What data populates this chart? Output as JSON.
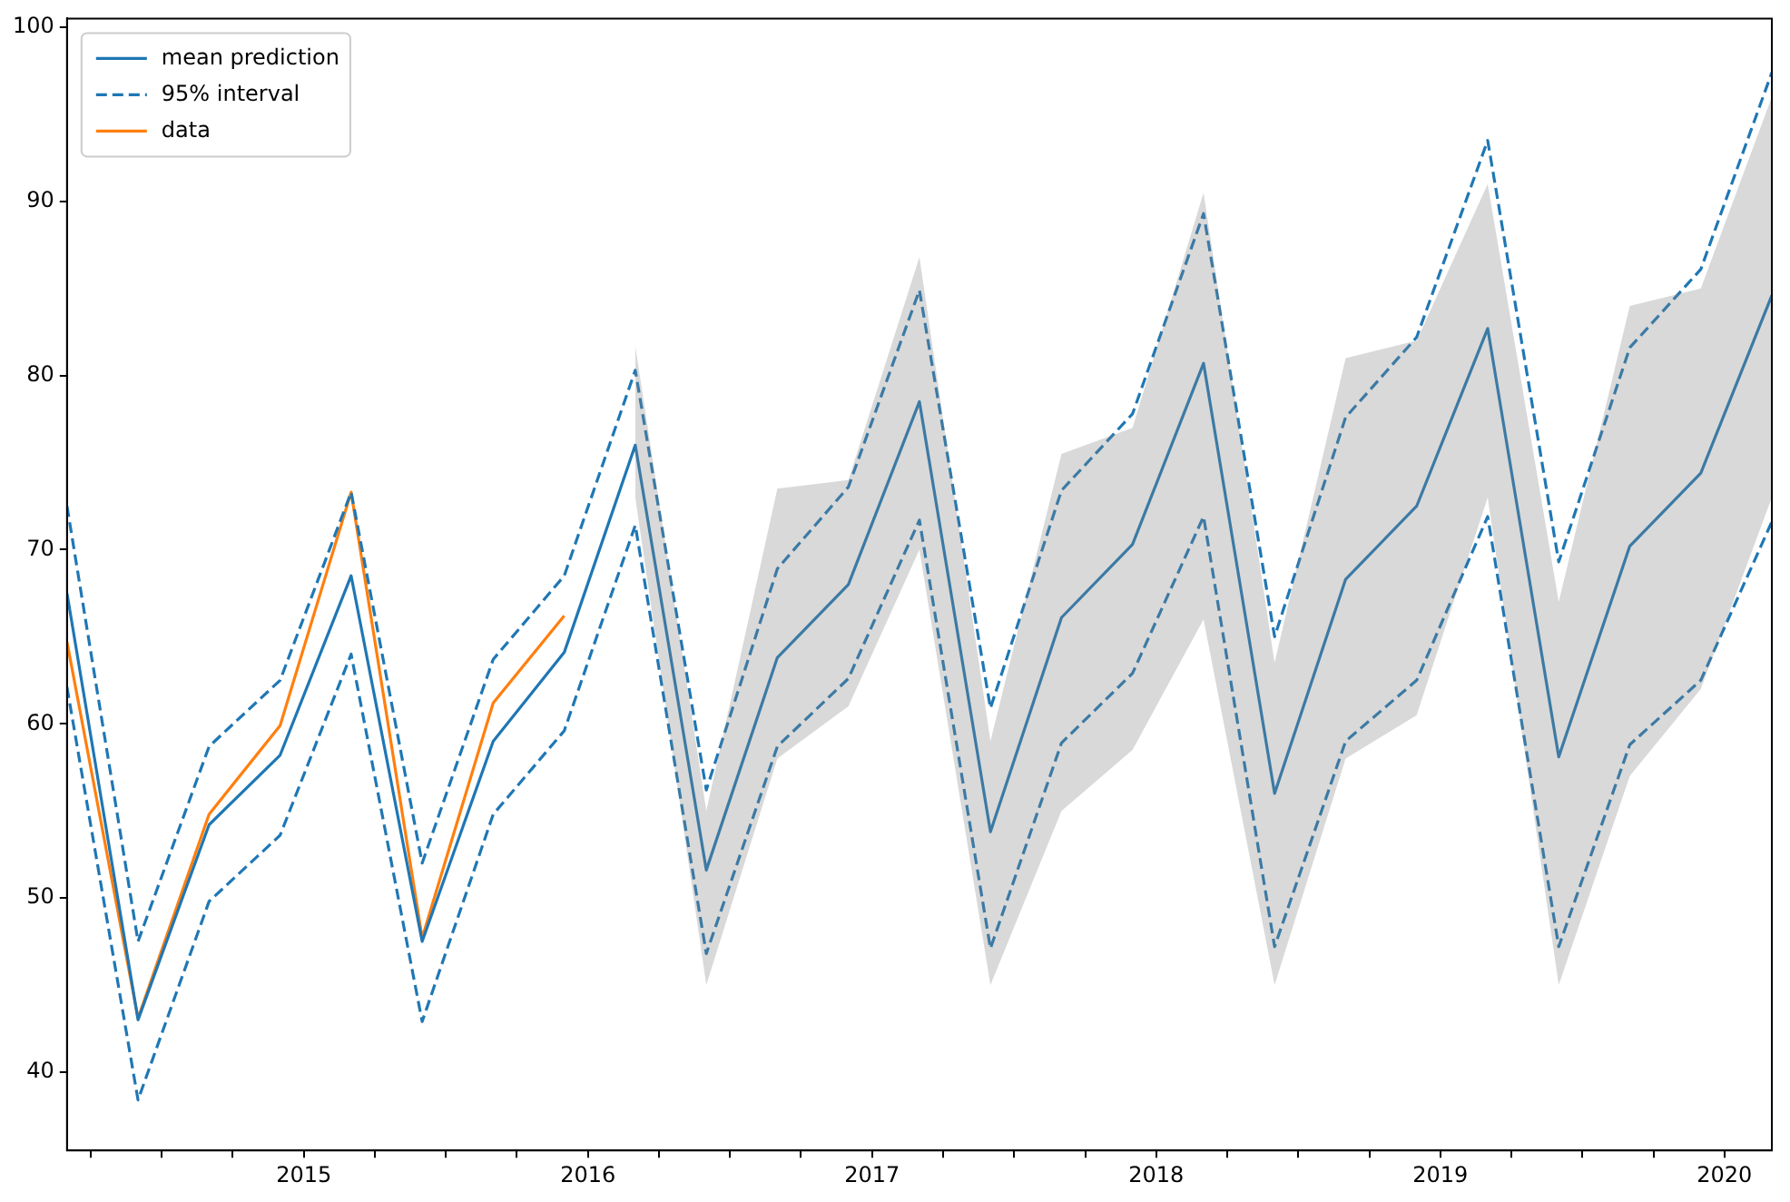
{
  "chart_data": {
    "type": "line",
    "x": [
      "2014-03",
      "2014-06",
      "2014-09",
      "2014-12",
      "2015-03",
      "2015-06",
      "2015-09",
      "2015-12",
      "2016-03",
      "2016-06",
      "2016-09",
      "2016-12",
      "2017-03",
      "2017-06",
      "2017-09",
      "2017-12",
      "2018-03",
      "2018-06",
      "2018-09",
      "2018-12",
      "2019-03",
      "2019-06",
      "2019-09",
      "2019-12",
      "2020-03"
    ],
    "series": [
      {
        "color": "#808080",
        "values": [
          null,
          null,
          null,
          null,
          null,
          null,
          null,
          null,
          null,
          null,
          null,
          null,
          null,
          null,
          null,
          null,
          null,
          null,
          null,
          null,
          null,
          null,
          null,
          null,
          null
        ],
        "lower": [
          null,
          null,
          null,
          null,
          null,
          null,
          null,
          null,
          73,
          45,
          58,
          61,
          70,
          45,
          55,
          58.5,
          66,
          45,
          58,
          60.5,
          73,
          45,
          57,
          62,
          73
        ],
        "upper": [
          null,
          null,
          null,
          null,
          null,
          null,
          null,
          null,
          81.7,
          55,
          73.5,
          74,
          86.8,
          59,
          75.5,
          77,
          90.5,
          63.5,
          81,
          82,
          91,
          67,
          84,
          85,
          96
        ]
      },
      {
        "name": "mean prediction",
        "color": "#1f77b4",
        "line_style": "solid",
        "values": [
          67.5,
          43.0,
          54.2,
          58.2,
          68.5,
          47.5,
          59.0,
          64.1,
          76.0,
          51.6,
          63.8,
          68.0,
          78.5,
          53.8,
          66.1,
          70.3,
          80.7,
          56.0,
          68.3,
          72.5,
          82.7,
          58.1,
          70.2,
          74.4,
          84.6
        ]
      },
      {
        "name": "95% interval",
        "color": "#1f77b4",
        "line_style": "dashed",
        "values": [
          72.5,
          47.5,
          58.7,
          62.5,
          73.3,
          52.0,
          63.7,
          68.5,
          80.3,
          56.2,
          68.9,
          73.6,
          84.9,
          60.9,
          73.4,
          77.8,
          89.3,
          65.0,
          77.6,
          82.2,
          93.5,
          69.3,
          81.6,
          86.1,
          97.4
        ]
      },
      {
        "color": "#1f77b4",
        "line_style": "dashed",
        "values": [
          62.1,
          38.4,
          49.8,
          53.6,
          64.0,
          42.9,
          54.8,
          59.6,
          71.4,
          46.8,
          58.7,
          62.6,
          71.7,
          47.1,
          58.9,
          62.9,
          71.9,
          47.2,
          59.0,
          62.5,
          71.9,
          47.2,
          58.8,
          62.5,
          71.6
        ]
      },
      {
        "name": "data",
        "color": "#ff7f0e",
        "line_style": "solid",
        "values": [
          64.7,
          43.1,
          54.8,
          59.9,
          73.3,
          47.7,
          61.2,
          66.2,
          null,
          null,
          null,
          null,
          null,
          null,
          null,
          null,
          null,
          null,
          null,
          null,
          null,
          null,
          null,
          null,
          null
        ]
      }
    ],
    "xlim": [
      "2014-03",
      "2020-03"
    ],
    "xticks": [
      {
        "value": "2014-04",
        "label": null
      },
      {
        "value": "2014-07",
        "label": null
      },
      {
        "value": "2014-10",
        "label": null
      },
      {
        "value": "2015-01",
        "label": "2015"
      },
      {
        "value": "2015-04",
        "label": null
      },
      {
        "value": "2015-07",
        "label": null
      },
      {
        "value": "2015-10",
        "label": null
      },
      {
        "value": "2016-01",
        "label": "2016"
      },
      {
        "value": "2016-04",
        "label": null
      },
      {
        "value": "2016-07",
        "label": null
      },
      {
        "value": "2016-10",
        "label": null
      },
      {
        "value": "2017-01",
        "label": "2017"
      },
      {
        "value": "2017-04",
        "label": null
      },
      {
        "value": "2017-07",
        "label": null
      },
      {
        "value": "2017-10",
        "label": null
      },
      {
        "value": "2018-01",
        "label": "2018"
      },
      {
        "value": "2018-04",
        "label": null
      },
      {
        "value": "2018-07",
        "label": null
      },
      {
        "value": "2018-10",
        "label": null
      },
      {
        "value": "2019-01",
        "label": "2019"
      },
      {
        "value": "2019-04",
        "label": null
      },
      {
        "value": "2019-07",
        "label": null
      },
      {
        "value": "2019-10",
        "label": null
      },
      {
        "value": "2020-01",
        "label": "2020"
      }
    ],
    "ylim": [
      35.5,
      100.5
    ],
    "yticks": [
      40,
      50,
      60,
      70,
      80,
      90,
      100
    ],
    "legend": "top left",
    "marker": "none"
  }
}
